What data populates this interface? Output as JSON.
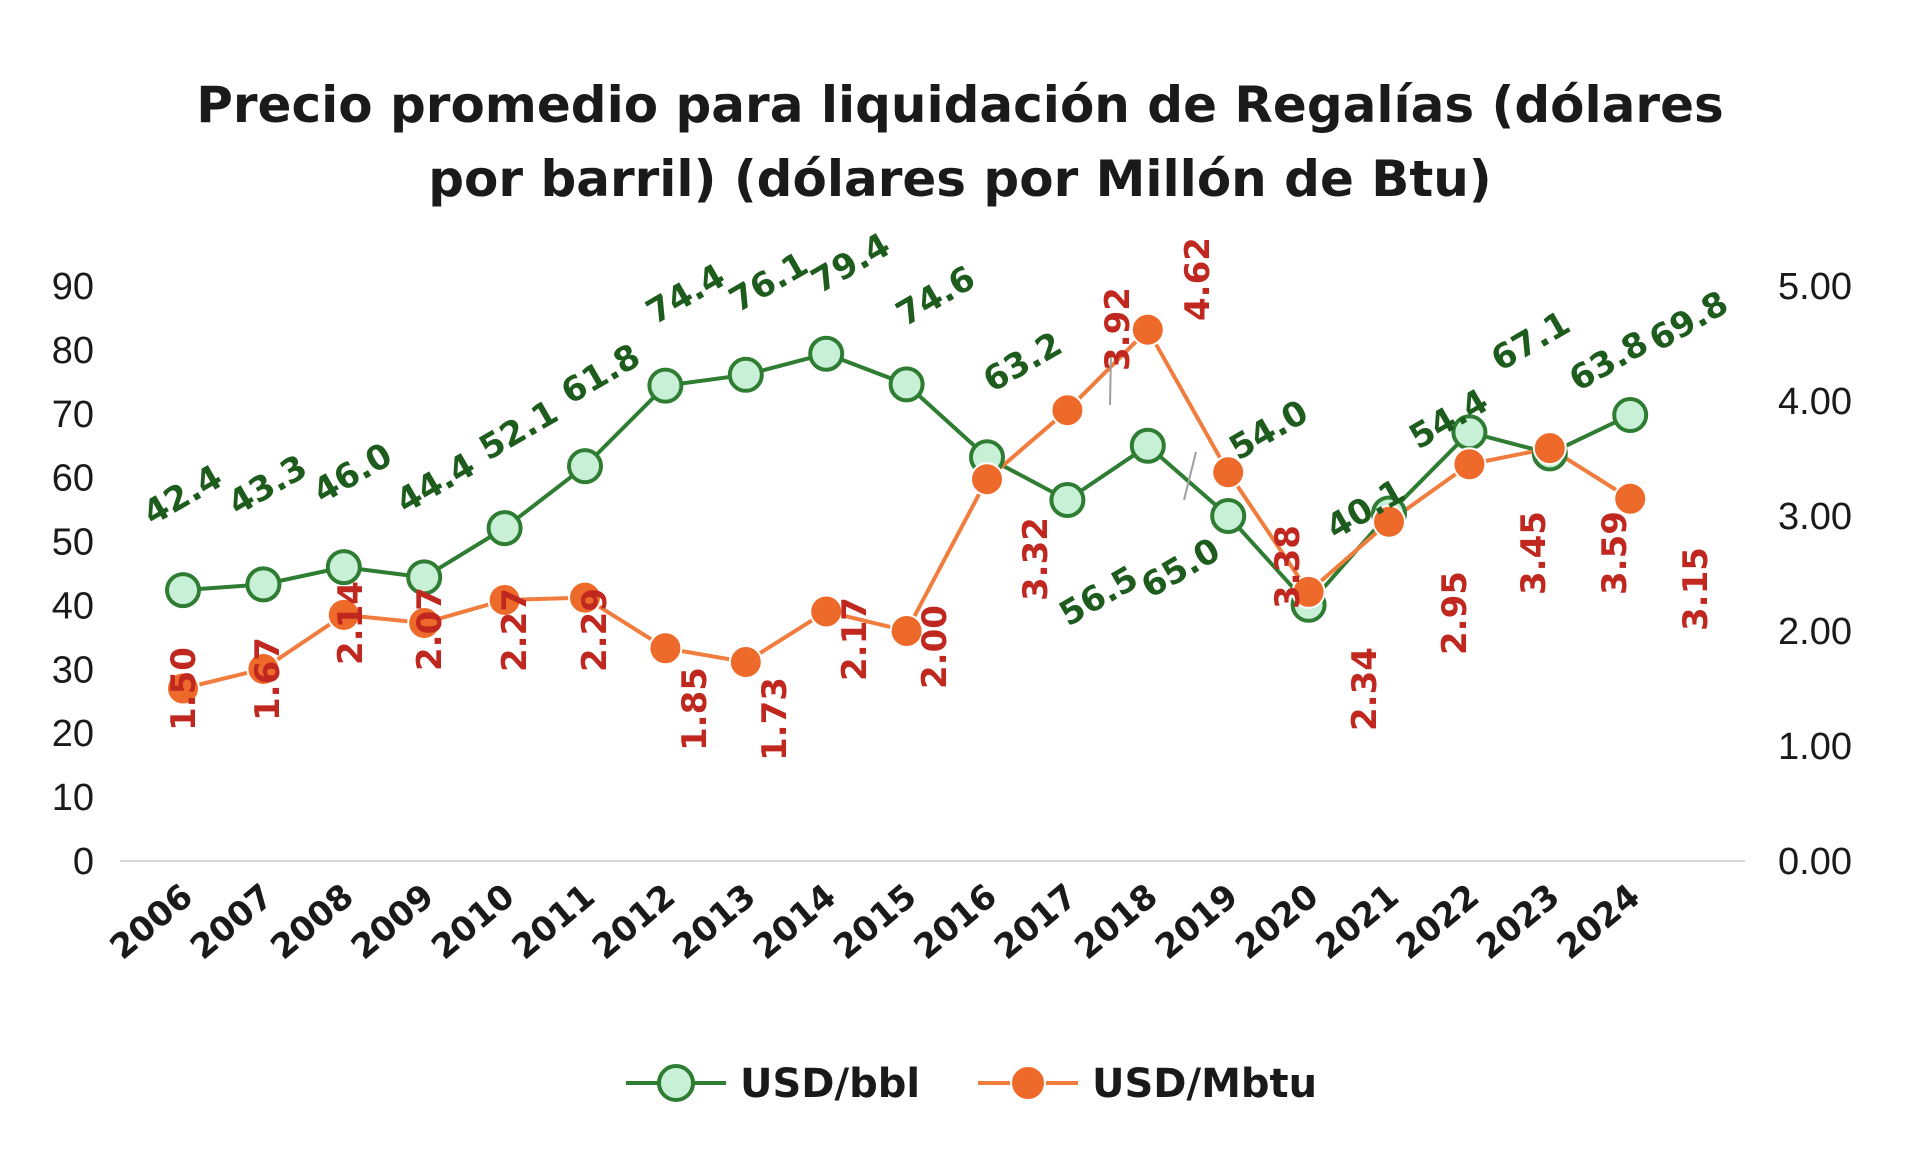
{
  "chart_data": {
    "type": "line",
    "title_lines": [
      "Precio promedio para liquidación de Regalías (dólares",
      "por barril) (dólares por Millón de Btu)"
    ],
    "categories": [
      "2006",
      "2007",
      "2008",
      "2009",
      "2010",
      "2011",
      "2012",
      "2013",
      "2014",
      "2015",
      "2016",
      "2017",
      "2018",
      "2019",
      "2020",
      "2021",
      "2022",
      "2023",
      "2024"
    ],
    "y_left": {
      "min": 0,
      "max": 90,
      "step": 10,
      "ticks": [
        "0",
        "10",
        "20",
        "30",
        "40",
        "50",
        "60",
        "70",
        "80",
        "90"
      ]
    },
    "y_right": {
      "min": 0,
      "max": 5,
      "step": 1,
      "ticks": [
        "0.00",
        "1.00",
        "2.00",
        "3.00",
        "4.00",
        "5.00"
      ]
    },
    "grid": false,
    "legend_position": "bottom",
    "series": [
      {
        "name": "USD/bbl",
        "axis": "left",
        "line_color": "#2e7d32",
        "marker_color": "#c8f0d6",
        "label_color": "#1e5c1e",
        "values": [
          42.4,
          43.3,
          46.0,
          44.4,
          52.1,
          61.8,
          74.4,
          76.1,
          79.4,
          74.6,
          63.2,
          56.5,
          65.0,
          54.0,
          40.1,
          54.4,
          67.1,
          63.8,
          69.8
        ],
        "labels": [
          "42.4",
          "43.3",
          "46.0",
          "44.4",
          "52.1",
          "61.8",
          "74.4",
          "76.1",
          "79.4",
          "74.6",
          "63.2",
          "56.5",
          "65.0",
          "54.0",
          "40.1",
          "54.4",
          "67.1",
          "63.8",
          "69.8"
        ]
      },
      {
        "name": "USD/Mbtu",
        "axis": "right",
        "line_color": "#f07c3e",
        "marker_color": "#ee6a2a",
        "label_color": "#c0271f",
        "values": [
          1.5,
          1.67,
          2.14,
          2.07,
          2.27,
          2.29,
          1.85,
          1.73,
          2.17,
          2.0,
          3.32,
          3.92,
          4.62,
          3.38,
          2.34,
          2.95,
          3.45,
          3.59,
          3.15
        ],
        "labels": [
          "1.50",
          "1.67",
          "2.14",
          "2.07",
          "2.27",
          "2.29",
          "1.85",
          "1.73",
          "2.17",
          "2.00",
          "3.32",
          "3.92",
          "4.62",
          "3.38",
          "2.34",
          "2.95",
          "3.45",
          "3.59",
          "3.15"
        ]
      }
    ]
  }
}
